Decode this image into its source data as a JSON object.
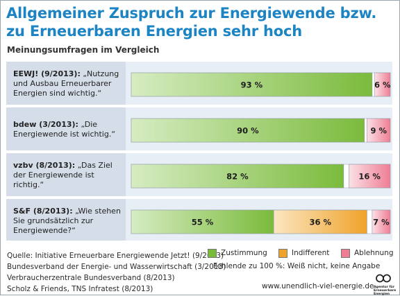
{
  "header": {
    "title_line1": "Allgemeiner Zuspruch zur Energiewende bzw.",
    "title_line2": "zu Erneuerbaren Energien sehr hoch",
    "subtitle": "Meinungsumfragen im Vergleich"
  },
  "colors": {
    "title": "#1d84c4",
    "zustimmung": "#7bbb3c",
    "indifferent": "#f0a32a",
    "ablehnung": "#ef7e95",
    "panel_dark": "#d4dde8",
    "panel_light": "#e8eef5"
  },
  "chart_data": {
    "type": "bar",
    "orientation": "horizontal-stacked",
    "xlim": [
      0,
      100
    ],
    "categories": [
      {
        "source": "EEWJ! (9/2013):",
        "quote": "„Nutzung und Ausbau Erneuerbarer Energien sind wichtig.“"
      },
      {
        "source": "bdew (3/2013):",
        "quote": "„Die Energiewende ist wichtig.“"
      },
      {
        "source": "vzbv (8/2013):",
        "quote": "„Das Ziel der Energiewende ist richtig.“"
      },
      {
        "source": "S&F (8/2013):",
        "quote": "„Wie stehen Sie grundsätzlich zur Energiewende?“"
      }
    ],
    "series": [
      {
        "name": "Zustimmung",
        "values": [
          93,
          90,
          82,
          55
        ],
        "labels": [
          "93 %",
          "90 %",
          "82 %",
          "55 %"
        ]
      },
      {
        "name": "Indifferent",
        "values": [
          0,
          0,
          0,
          36
        ],
        "labels": [
          "",
          "",
          "",
          "36 %"
        ]
      },
      {
        "name": "Ablehnung",
        "values": [
          6,
          9,
          16,
          7
        ],
        "labels": [
          "6 %",
          "9 %",
          "16 %",
          "7 %"
        ]
      }
    ],
    "legend": [
      "Zustimmung",
      "Indifferent",
      "Ablehnung"
    ],
    "legend_position": "bottom-right"
  },
  "footer": {
    "sources": [
      "Quelle: Initiative Erneuerbare Energiewende Jetzt! (9/2013)",
      "Bundesverband der Energie- und Wasserwirtschaft (3/2013)",
      "Verbraucherzentrale Bundesverband (8/2013)",
      "Scholz & Friends, TNS Infratest (8/2013)"
    ],
    "note": "Fehlende zu 100 %: Weiß nicht, keine Angabe",
    "url": "www.unendlich-viel-energie.de",
    "logo_text": [
      "Agentur für",
      "Erneuerbare",
      "Energien"
    ]
  }
}
